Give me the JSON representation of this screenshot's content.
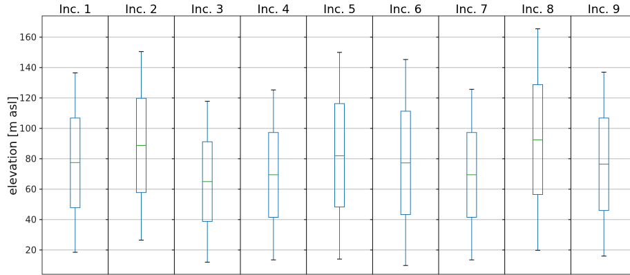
{
  "chart_data": {
    "type": "box",
    "ylabel": "elevation [m asl]",
    "ylim": [
      4,
      174
    ],
    "yticks": [
      20,
      40,
      60,
      80,
      100,
      120,
      140,
      160
    ],
    "grid": "horizontal",
    "box_color": "#1f77b4",
    "median_color": "#2ca02c",
    "panels": [
      {
        "title": "Inc. 1",
        "whisker_low": 18.5,
        "q1": 47.8,
        "median": 77.5,
        "q3": 106.8,
        "whisker_high": 136.5
      },
      {
        "title": "Inc. 2",
        "whisker_low": 26.5,
        "q1": 57.8,
        "median": 88.8,
        "q3": 119.8,
        "whisker_high": 150.5
      },
      {
        "title": "Inc. 3",
        "whisker_low": 12.0,
        "q1": 38.8,
        "median": 65.0,
        "q3": 91.2,
        "whisker_high": 117.8
      },
      {
        "title": "Inc. 4",
        "whisker_low": 13.5,
        "q1": 41.5,
        "median": 69.5,
        "q3": 97.3,
        "whisker_high": 125.3
      },
      {
        "title": "Inc. 5",
        "whisker_low": 14.0,
        "q1": 48.3,
        "median": 82.0,
        "q3": 116.3,
        "whisker_high": 150.0
      },
      {
        "title": "Inc. 6",
        "whisker_low": 9.8,
        "q1": 43.3,
        "median": 77.3,
        "q3": 111.3,
        "whisker_high": 145.3
      },
      {
        "title": "Inc. 7",
        "whisker_low": 13.5,
        "q1": 41.5,
        "median": 69.5,
        "q3": 97.3,
        "whisker_high": 125.7
      },
      {
        "title": "Inc. 8",
        "whisker_low": 19.8,
        "q1": 56.5,
        "median": 92.5,
        "q3": 128.8,
        "whisker_high": 165.5
      },
      {
        "title": "Inc. 9",
        "whisker_low": 16.0,
        "q1": 46.0,
        "median": 76.5,
        "q3": 106.8,
        "whisker_high": 137.0
      }
    ]
  }
}
